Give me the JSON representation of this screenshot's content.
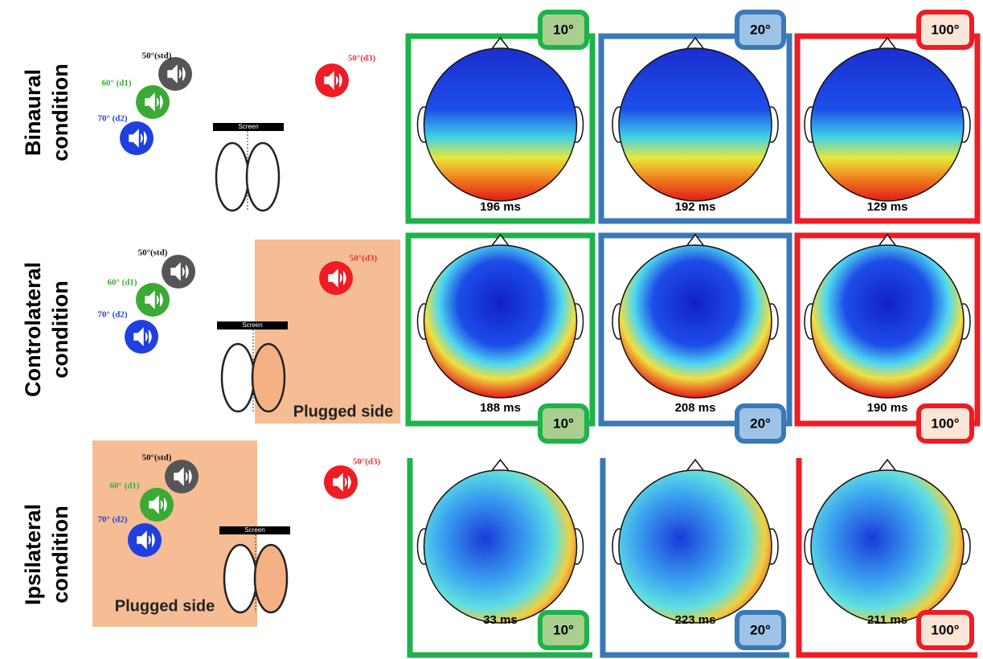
{
  "rows": [
    {
      "label": [
        "Binaural",
        "condition"
      ],
      "speakers": {
        "std": "50°(std)",
        "d1": "60° (d1)",
        "d2": "70° (d2)",
        "d3": "50°(d3)"
      },
      "screen": "Screen",
      "maps": [
        {
          "angle": "10°",
          "latency": "196 ms"
        },
        {
          "angle": "20°",
          "latency": "192 ms"
        },
        {
          "angle": "100°",
          "latency": "129 ms"
        }
      ]
    },
    {
      "label": [
        "Controlateral",
        "condition"
      ],
      "speakers": {
        "std": "50°(std)",
        "d1": "60° (d1)",
        "d2": "70° (d2)",
        "d3": "50°(d3)"
      },
      "screen": "Screen",
      "plugged": "Plugged side",
      "maps": [
        {
          "angle": "10°",
          "latency": "188 ms"
        },
        {
          "angle": "20°",
          "latency": "208 ms"
        },
        {
          "angle": "100°",
          "latency": "190 ms"
        }
      ]
    },
    {
      "label": [
        "Ipsilateral",
        "condition"
      ],
      "speakers": {
        "std": "50°(std)",
        "d1": "60° (d1)",
        "d2": "70° (d2)",
        "d3": "50°(d3)"
      },
      "screen": "Screen",
      "plugged": "Plugged side",
      "maps": [
        {
          "angle": "10°",
          "latency": "33 ms"
        },
        {
          "angle": "20°",
          "latency": "223 ms"
        },
        {
          "angle": "100°",
          "latency": "211 ms"
        }
      ]
    }
  ]
}
